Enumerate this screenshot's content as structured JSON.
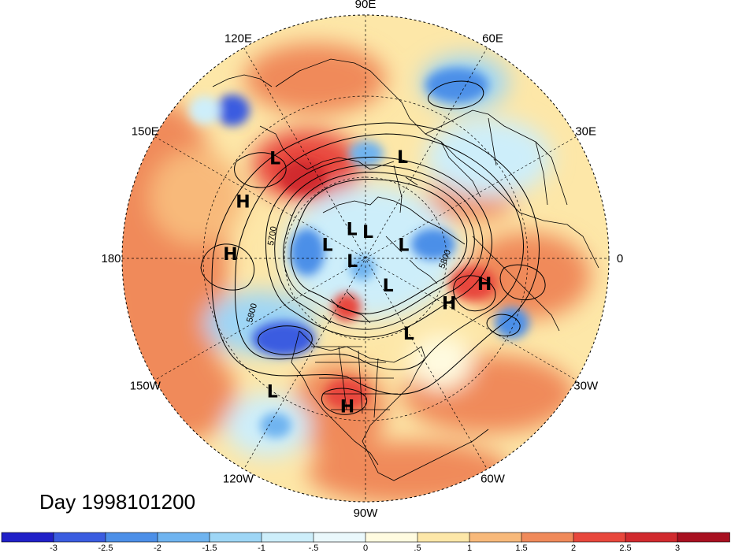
{
  "title": "Day 1998101200",
  "longitude_labels": [
    "90E",
    "60E",
    "30E",
    "0",
    "30W",
    "60W",
    "90W",
    "120W",
    "150W",
    "180",
    "150E",
    "120E"
  ],
  "contour_labels": [
    "5700",
    "5800",
    "5800"
  ],
  "pressure_centers": [
    {
      "label": "L",
      "lon": 132,
      "lat": 40
    },
    {
      "label": "L",
      "lon": 70,
      "lat": 50
    },
    {
      "label": "H",
      "lon": 155,
      "lat": 40
    },
    {
      "label": "L",
      "lon": 115,
      "lat": 78
    },
    {
      "label": "L",
      "lon": 85,
      "lat": 80
    },
    {
      "label": "L",
      "lon": 20,
      "lat": 75
    },
    {
      "label": "L",
      "lon": 160,
      "lat": 75
    },
    {
      "label": "L",
      "lon": -170,
      "lat": 85
    },
    {
      "label": "H",
      "lon": 178,
      "lat": 40
    },
    {
      "label": "L",
      "lon": -50,
      "lat": 77
    },
    {
      "label": "H",
      "lon": -28,
      "lat": 55
    },
    {
      "label": "H",
      "lon": -12,
      "lat": 45
    },
    {
      "label": "L",
      "lon": -60,
      "lat": 58
    },
    {
      "label": "H",
      "lon": -97,
      "lat": 35
    },
    {
      "label": "L",
      "lon": -125,
      "lat": 30
    }
  ],
  "colorbar": {
    "tick_labels": [
      "-3",
      "-2.5",
      "-2",
      "-1.5",
      "-1",
      "-.5",
      "0",
      ".5",
      "1",
      "1.5",
      "2",
      "2.5",
      "3"
    ],
    "colors": [
      "#2020c8",
      "#3a5ce0",
      "#4c8fe8",
      "#6fb4f0",
      "#9ed6f6",
      "#cdeefa",
      "#eaf8fc",
      "#fffbe0",
      "#fde7a8",
      "#f8b97a",
      "#f08a5a",
      "#e8473c",
      "#d12a2e",
      "#a81020"
    ]
  },
  "colors": {
    "land_outline": "#000000",
    "background": "#ffffff"
  }
}
